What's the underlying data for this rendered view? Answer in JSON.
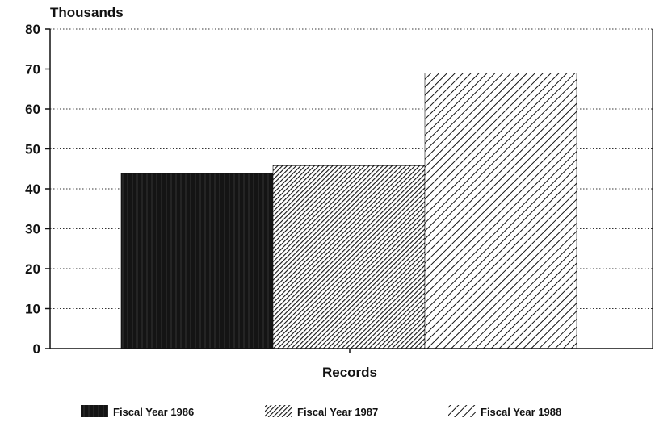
{
  "chart_data": {
    "type": "bar",
    "title": "",
    "ylabel": "Thousands",
    "xlabel": "Records",
    "ylim": [
      0,
      80
    ],
    "yticks": [
      0,
      10,
      20,
      30,
      40,
      50,
      60,
      70,
      80
    ],
    "grid": "horizontal dotted",
    "legend_position": "bottom",
    "series": [
      {
        "name": "Fiscal Year 1986",
        "values": [
          43.8
        ],
        "pattern": "solid-dark"
      },
      {
        "name": "Fiscal Year 1987",
        "values": [
          45.8
        ],
        "pattern": "dense-diagonal"
      },
      {
        "name": "Fiscal Year 1988",
        "values": [
          69
        ],
        "pattern": "wide-diagonal"
      }
    ]
  },
  "colors": {
    "ink": "#111111",
    "background": "#ffffff"
  }
}
